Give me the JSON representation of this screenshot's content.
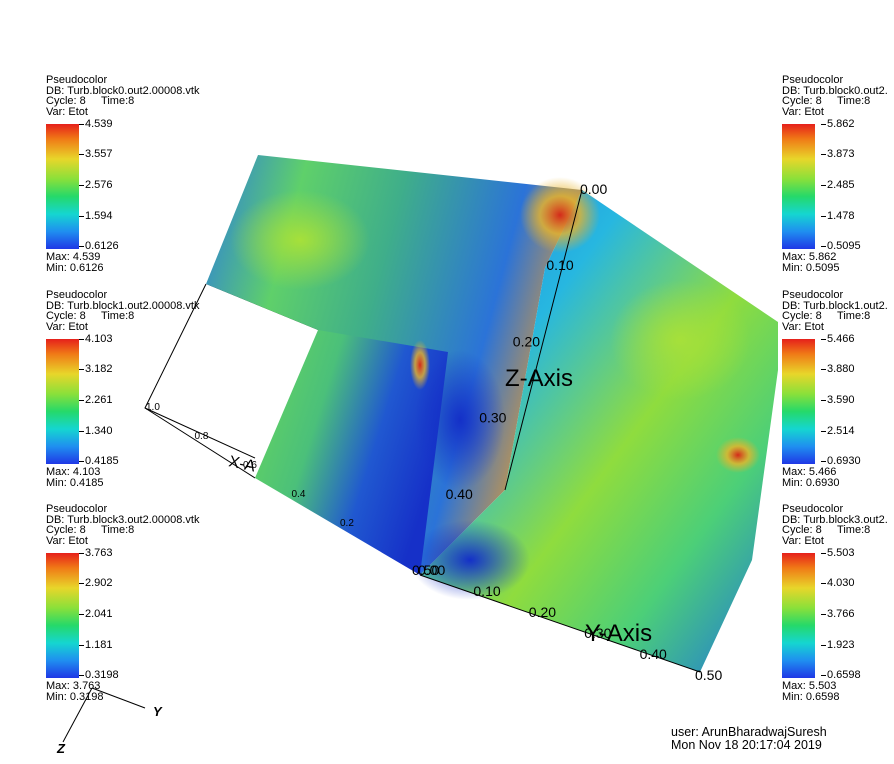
{
  "legends": [
    {
      "plot": "Pseudocolor",
      "db": "DB: Turb.block0.out2.00008.vtk",
      "cycle": "Cycle: 8",
      "time": "Time:8",
      "var": "Var: Etot",
      "ticks": [
        "4.539",
        "3.557",
        "2.576",
        "1.594",
        "0.6126"
      ],
      "max": "Max:  4.539",
      "min": "Min:  0.6126"
    },
    {
      "plot": "Pseudocolor",
      "db": "DB: Turb.block1.out2.00008.vtk",
      "cycle": "Cycle: 8",
      "time": "Time:8",
      "var": "Var: Etot",
      "ticks": [
        "4.103",
        "3.182",
        "2.261",
        "1.340",
        "0.4185"
      ],
      "max": "Max:  4.103",
      "min": "Min:  0.4185"
    },
    {
      "plot": "Pseudocolor",
      "db": "DB: Turb.block3.out2.00008.vtk",
      "cycle": "Cycle: 8",
      "time": "Time:8",
      "var": "Var: Etot",
      "ticks": [
        "3.763",
        "2.902",
        "2.041",
        "1.181",
        "0.3198"
      ],
      "max": "Max:  3.763",
      "min": "Min:  0.3198"
    },
    {
      "plot": "Pseudocolor",
      "db": "DB: Turb.block0.out2.",
      "cycle": "Cycle: 8",
      "time": "Time:8",
      "var": "Var: Etot",
      "ticks": [
        "5.862",
        "3.873",
        "2.485",
        "1.478",
        "0.5095"
      ],
      "max": "Max:  5.862",
      "min": "Min:  0.5095"
    },
    {
      "plot": "Pseudocolor",
      "db": "DB: Turb.block1.out2.",
      "cycle": "Cycle: 8",
      "time": "Time:8",
      "var": "Var: Etot",
      "ticks": [
        "5.466",
        "3.880",
        "3.590",
        "2.514",
        "0.6930"
      ],
      "max": "Max:  5.466",
      "min": "Min:  0.6930"
    },
    {
      "plot": "Pseudocolor",
      "db": "DB: Turb.block3.out2.",
      "cycle": "Cycle: 8",
      "time": "Time:8",
      "var": "Var: Etot",
      "ticks": [
        "5.503",
        "4.030",
        "3.766",
        "1.923",
        "0.6598"
      ],
      "max": "Max:  5.503",
      "min": "Min:  0.6598"
    }
  ],
  "axes": {
    "z_label": "Z-Axis",
    "y_label": "Y-Axis",
    "x_label": "X-A",
    "z_ticks": [
      "0.00",
      "0.10",
      "0.20",
      "0.30",
      "0.40",
      "0.50"
    ],
    "y_ticks": [
      "0.00",
      "0.10",
      "0.20",
      "0.30",
      "0.40",
      "0.50"
    ],
    "x_ticks": [
      "1.0",
      "0.8",
      "0.6",
      "0.4",
      "0.2"
    ]
  },
  "triad": {
    "y": "Y",
    "z": "Z"
  },
  "footer": {
    "user": "user: ArunBharadwajSuresh",
    "date": "Mon Nov 18 20:17:04 2019"
  }
}
